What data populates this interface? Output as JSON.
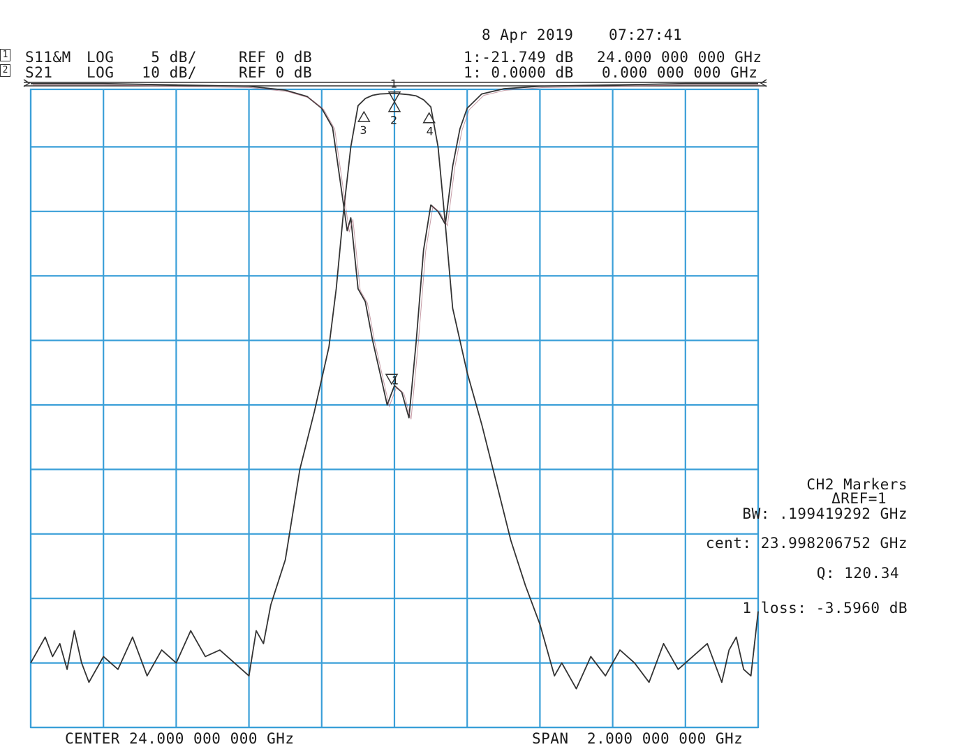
{
  "header": {
    "date": "8 Apr 2019",
    "time": "07:27:41"
  },
  "channels": [
    {
      "box": "1",
      "name": "S11&M",
      "format": "LOG",
      "scale": "5 dB/",
      "ref": "REF 0 dB",
      "marker_value": "1:-21.749 dB",
      "marker_freq": "24.000 000 000 GHz"
    },
    {
      "box": "2",
      "name": "S21",
      "format": "LOG",
      "scale": "10 dB/",
      "ref": "REF 0 dB",
      "marker_value": "1: 0.0000 dB",
      "marker_freq": "0.000 000 000 GHz"
    }
  ],
  "footer": {
    "center": "CENTER 24.000 000 000 GHz",
    "span": "SPAN  2.000 000 000 GHz"
  },
  "markers_panel": {
    "title": "CH2 Markers",
    "ref": "ΔREF=1",
    "bw": "BW: .199419292 GHz",
    "cent": "cent: 23.998206752 GHz",
    "q": "Q: 120.34",
    "loss": "1 loss: -3.5960 dB"
  },
  "marker_labels": [
    "1",
    "2",
    "3",
    "4"
  ],
  "colors": {
    "grid": "#3a9fd8",
    "trace": "#333333",
    "trace_secondary": "#a05a6a",
    "marker": "#6070c0"
  },
  "chart_data": {
    "type": "line",
    "xlabel": "",
    "ylabel": "",
    "xlim": [
      23.0,
      25.0
    ],
    "x_unit": "GHz",
    "grid": true,
    "divisions": {
      "x": 10,
      "y": 10
    },
    "series": [
      {
        "name": "S21",
        "scale_db_per_div": 10,
        "ref_db": 0,
        "ylim": [
          -100,
          0
        ],
        "x": [
          23.0,
          23.02,
          23.04,
          23.06,
          23.08,
          23.1,
          23.12,
          23.14,
          23.16,
          23.2,
          23.24,
          23.28,
          23.32,
          23.36,
          23.4,
          23.44,
          23.48,
          23.52,
          23.56,
          23.6,
          23.62,
          23.64,
          23.66,
          23.7,
          23.74,
          23.78,
          23.82,
          23.84,
          23.86,
          23.88,
          23.9,
          23.92,
          23.94,
          23.96,
          24.0,
          24.04,
          24.06,
          24.08,
          24.1,
          24.12,
          24.14,
          24.16,
          24.2,
          24.24,
          24.28,
          24.32,
          24.36,
          24.4,
          24.42,
          24.44,
          24.46,
          24.5,
          24.54,
          24.58,
          24.62,
          24.66,
          24.7,
          24.74,
          24.78,
          24.82,
          24.86,
          24.9,
          24.92,
          24.94,
          24.96,
          24.98,
          25.0
        ],
        "y": [
          -90,
          -88,
          -86,
          -89,
          -87,
          -91,
          -85,
          -90,
          -93,
          -89,
          -91,
          -86,
          -92,
          -88,
          -90,
          -85,
          -89,
          -88,
          -90,
          -92,
          -85,
          -87,
          -81,
          -74,
          -60,
          -51,
          -41,
          -32,
          -20,
          -10,
          -3.6,
          -2.5,
          -2.0,
          -1.8,
          -1.7,
          -1.9,
          -2.1,
          -2.7,
          -3.8,
          -10,
          -22,
          -35,
          -45,
          -53,
          -62,
          -71,
          -78,
          -84,
          -88,
          -92,
          -90,
          -94,
          -89,
          -92,
          -88,
          -90,
          -93,
          -87,
          -91,
          -89,
          -87,
          -93,
          -88,
          -86,
          -91,
          -92,
          -82
        ]
      },
      {
        "name": "S11&M",
        "scale_db_per_div": 5,
        "ref_db": 0,
        "ylim": [
          -50,
          0
        ],
        "x": [
          23.0,
          23.2,
          23.4,
          23.6,
          23.7,
          23.76,
          23.8,
          23.83,
          23.85,
          23.87,
          23.88,
          23.9,
          23.92,
          23.94,
          23.96,
          23.98,
          24.0,
          24.02,
          24.04,
          24.06,
          24.08,
          24.1,
          24.12,
          24.14,
          24.16,
          24.18,
          24.2,
          24.24,
          24.3,
          24.4,
          24.6,
          24.8,
          25.0
        ],
        "y": [
          -0.1,
          -0.1,
          -0.2,
          -0.3,
          -0.6,
          -1.1,
          -2.0,
          -3.5,
          -7.5,
          -11.5,
          -10.5,
          -16,
          -17,
          -20,
          -22.5,
          -25,
          -23.5,
          -24,
          -26,
          -20,
          -13,
          -9.5,
          -10,
          -11,
          -6.5,
          -3.6,
          -2.0,
          -0.9,
          -0.5,
          -0.3,
          -0.2,
          -0.1,
          -0.1
        ]
      }
    ]
  }
}
